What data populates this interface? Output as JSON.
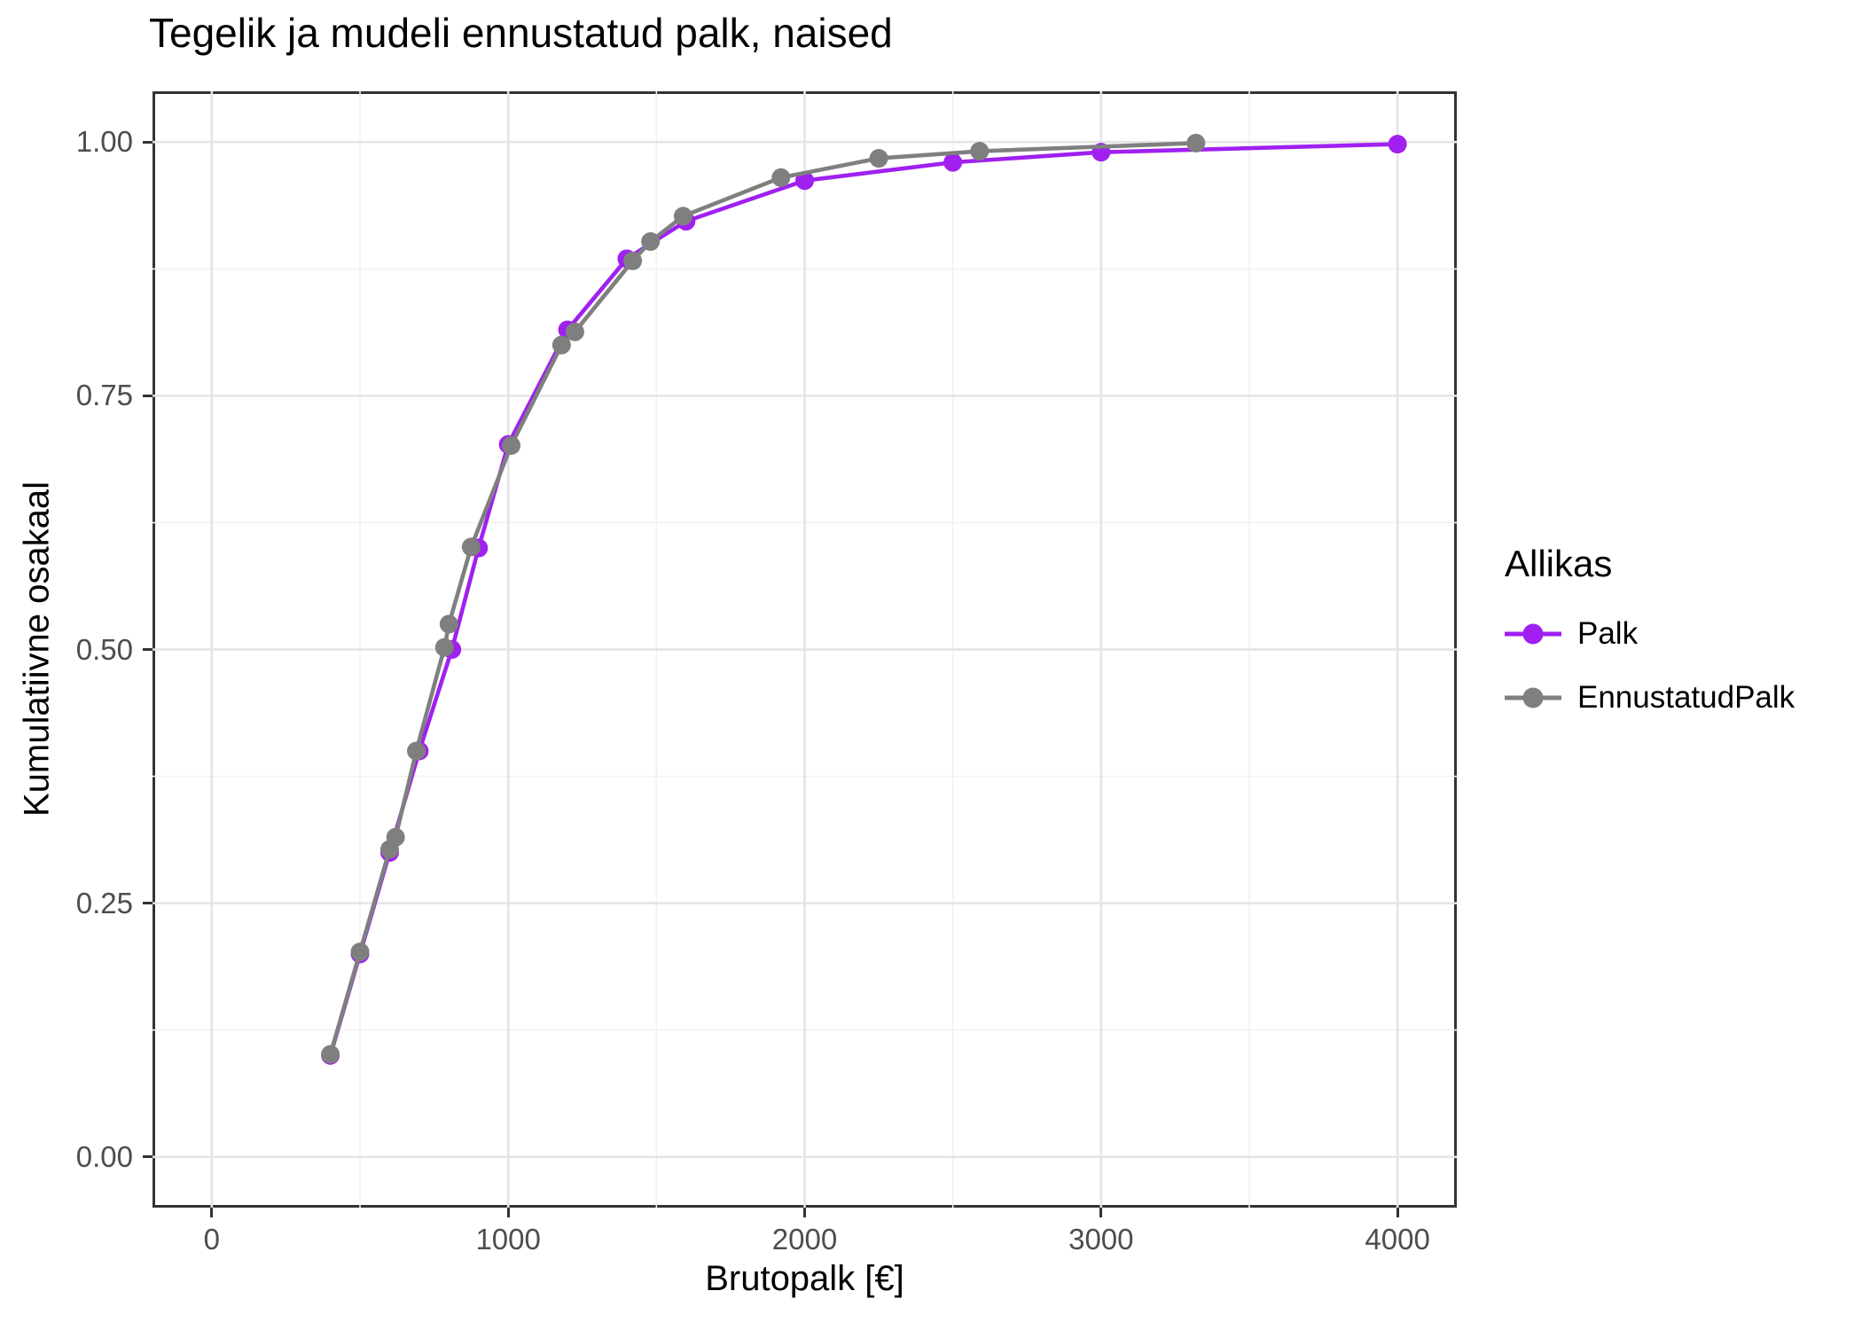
{
  "title": "Tegelik ja mudeli ennustatud palk, naised",
  "x_axis": {
    "label": "Brutopalk [€]",
    "ticks": [
      {
        "value": 0,
        "label": "0"
      },
      {
        "value": 1000,
        "label": "1000"
      },
      {
        "value": 2000,
        "label": "2000"
      },
      {
        "value": 3000,
        "label": "3000"
      },
      {
        "value": 4000,
        "label": "4000"
      }
    ],
    "minor_ticks": [
      500,
      1500,
      2500,
      3500
    ],
    "range": [
      -200,
      4200
    ]
  },
  "y_axis": {
    "label": "Kumulatiivne osakaal",
    "ticks": [
      {
        "value": 0.0,
        "label": "0.00"
      },
      {
        "value": 0.25,
        "label": "0.25"
      },
      {
        "value": 0.5,
        "label": "0.50"
      },
      {
        "value": 0.75,
        "label": "0.75"
      },
      {
        "value": 1.0,
        "label": "1.00"
      }
    ],
    "minor_ticks": [
      0.125,
      0.375,
      0.625,
      0.875
    ],
    "range": [
      -0.05,
      1.05
    ]
  },
  "legend": {
    "title": "Allikas",
    "items": [
      {
        "label": "Palk",
        "color": "#A020F0"
      },
      {
        "label": "EnnustatudPalk",
        "color": "#7F7F7F"
      }
    ]
  },
  "colors": {
    "palk": "#A020F0",
    "ennustatud_palk": "#7F7F7F",
    "grid_major": "#E4E4E4",
    "grid_minor": "#F1F1F1",
    "panel_border": "#333333",
    "axis_text": "#4d4d4d",
    "tick_mark": "#333333"
  },
  "chart_data": {
    "type": "line",
    "title": "Tegelik ja mudeli ennustatud palk, naised",
    "xlabel": "Brutopalk [€]",
    "ylabel": "Kumulatiivne osakaal",
    "xlim": [
      -200,
      4200
    ],
    "ylim": [
      -0.05,
      1.05
    ],
    "grid": true,
    "legend_position": "right",
    "legend_title": "Allikas",
    "series": [
      {
        "name": "Palk",
        "color": "#A020F0",
        "marker": "circle",
        "points": [
          [
            400,
            0.1
          ],
          [
            500,
            0.2
          ],
          [
            600,
            0.3
          ],
          [
            700,
            0.4
          ],
          [
            810,
            0.5
          ],
          [
            900,
            0.6
          ],
          [
            1000,
            0.702
          ],
          [
            1200,
            0.815
          ],
          [
            1400,
            0.885
          ],
          [
            1600,
            0.922
          ],
          [
            2000,
            0.962
          ],
          [
            2500,
            0.98
          ],
          [
            3000,
            0.99
          ],
          [
            4000,
            0.998
          ]
        ]
      },
      {
        "name": "EnnustatudPalk",
        "color": "#7F7F7F",
        "marker": "circle",
        "points": [
          [
            400,
            0.101
          ],
          [
            500,
            0.202
          ],
          [
            600,
            0.303
          ],
          [
            620,
            0.315
          ],
          [
            690,
            0.4
          ],
          [
            785,
            0.502
          ],
          [
            800,
            0.525
          ],
          [
            875,
            0.601
          ],
          [
            1010,
            0.701
          ],
          [
            1180,
            0.8
          ],
          [
            1225,
            0.813
          ],
          [
            1420,
            0.883
          ],
          [
            1480,
            0.902
          ],
          [
            1590,
            0.927
          ],
          [
            1920,
            0.965
          ],
          [
            2250,
            0.984
          ],
          [
            2590,
            0.991
          ],
          [
            3320,
            0.999
          ]
        ]
      }
    ]
  }
}
